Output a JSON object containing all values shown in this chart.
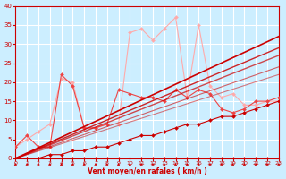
{
  "background_color": "#cceeff",
  "grid_color": "#ffffff",
  "xlabel": "Vent moyen/en rafales ( km/h )",
  "xlabel_color": "#cc0000",
  "tick_color": "#cc0000",
  "xlim": [
    0,
    23
  ],
  "ylim": [
    0,
    40
  ],
  "xticks": [
    0,
    1,
    2,
    3,
    4,
    5,
    6,
    7,
    8,
    9,
    10,
    11,
    12,
    13,
    14,
    15,
    16,
    17,
    18,
    19,
    20,
    21,
    22,
    23
  ],
  "yticks": [
    0,
    5,
    10,
    15,
    20,
    25,
    30,
    35,
    40
  ],
  "series": [
    {
      "x": [
        0,
        1,
        2,
        3,
        4,
        5,
        6,
        7,
        8,
        9,
        10,
        11,
        12,
        13,
        14,
        15,
        16,
        17,
        18,
        19,
        20,
        21,
        22,
        23
      ],
      "y": [
        3,
        5,
        7,
        9,
        21,
        20,
        8,
        8,
        9,
        9,
        33,
        34,
        31,
        34,
        37,
        16,
        35,
        19,
        16,
        17,
        14,
        14,
        15,
        15
      ],
      "color": "#ffaaaa",
      "linewidth": 0.8,
      "marker": "D",
      "markersize": 2.0,
      "alpha": 1.0,
      "linestyle": "-"
    },
    {
      "x": [
        0,
        1,
        2,
        3,
        4,
        5,
        6,
        7,
        8,
        9,
        10,
        11,
        12,
        13,
        14,
        15,
        16,
        17,
        18,
        19,
        20,
        21,
        22,
        23
      ],
      "y": [
        3,
        6,
        3,
        3,
        22,
        19,
        8,
        8,
        9,
        18,
        17,
        16,
        16,
        15,
        18,
        16,
        18,
        17,
        13,
        12,
        13,
        15,
        15,
        16
      ],
      "color": "#ee4444",
      "linewidth": 0.8,
      "marker": "D",
      "markersize": 2.0,
      "alpha": 1.0,
      "linestyle": "-"
    },
    {
      "x": [
        0,
        23
      ],
      "y": [
        0,
        32
      ],
      "color": "#cc0000",
      "linewidth": 1.2,
      "marker": null,
      "markersize": 0,
      "alpha": 1.0,
      "linestyle": "-"
    },
    {
      "x": [
        0,
        23
      ],
      "y": [
        0,
        29
      ],
      "color": "#cc0000",
      "linewidth": 1.0,
      "marker": null,
      "markersize": 0,
      "alpha": 0.85,
      "linestyle": "-"
    },
    {
      "x": [
        0,
        23
      ],
      "y": [
        0,
        27
      ],
      "color": "#cc0000",
      "linewidth": 1.0,
      "marker": null,
      "markersize": 0,
      "alpha": 0.7,
      "linestyle": "-"
    },
    {
      "x": [
        0,
        23
      ],
      "y": [
        0,
        24
      ],
      "color": "#cc0000",
      "linewidth": 0.8,
      "marker": null,
      "markersize": 0,
      "alpha": 0.6,
      "linestyle": "-"
    },
    {
      "x": [
        0,
        23
      ],
      "y": [
        0,
        22
      ],
      "color": "#cc0000",
      "linewidth": 0.8,
      "marker": null,
      "markersize": 0,
      "alpha": 0.5,
      "linestyle": "-"
    },
    {
      "x": [
        0,
        1,
        2,
        3,
        4,
        5,
        6,
        7,
        8,
        9,
        10,
        11,
        12,
        13,
        14,
        15,
        16,
        17,
        18,
        19,
        20,
        21,
        22,
        23
      ],
      "y": [
        0,
        0,
        0,
        1,
        1,
        2,
        2,
        3,
        3,
        4,
        5,
        6,
        6,
        7,
        8,
        9,
        9,
        10,
        11,
        11,
        12,
        13,
        14,
        15
      ],
      "color": "#cc0000",
      "linewidth": 0.8,
      "marker": "D",
      "markersize": 2.0,
      "alpha": 1.0,
      "linestyle": "-"
    },
    {
      "x": [
        0,
        1,
        2,
        3,
        4,
        5,
        6,
        7,
        8,
        9,
        10,
        11,
        12,
        13,
        14,
        15,
        16,
        17,
        18,
        19,
        20,
        21,
        22,
        23
      ],
      "y": [
        0,
        0,
        0,
        0,
        0,
        0,
        0,
        0,
        0,
        0,
        0,
        0,
        0,
        0,
        0,
        0,
        0,
        0,
        0,
        0,
        0,
        0,
        0,
        0
      ],
      "color": "#cc0000",
      "linewidth": 0.8,
      "marker": "D",
      "markersize": 2.0,
      "alpha": 1.0,
      "linestyle": "-"
    }
  ]
}
